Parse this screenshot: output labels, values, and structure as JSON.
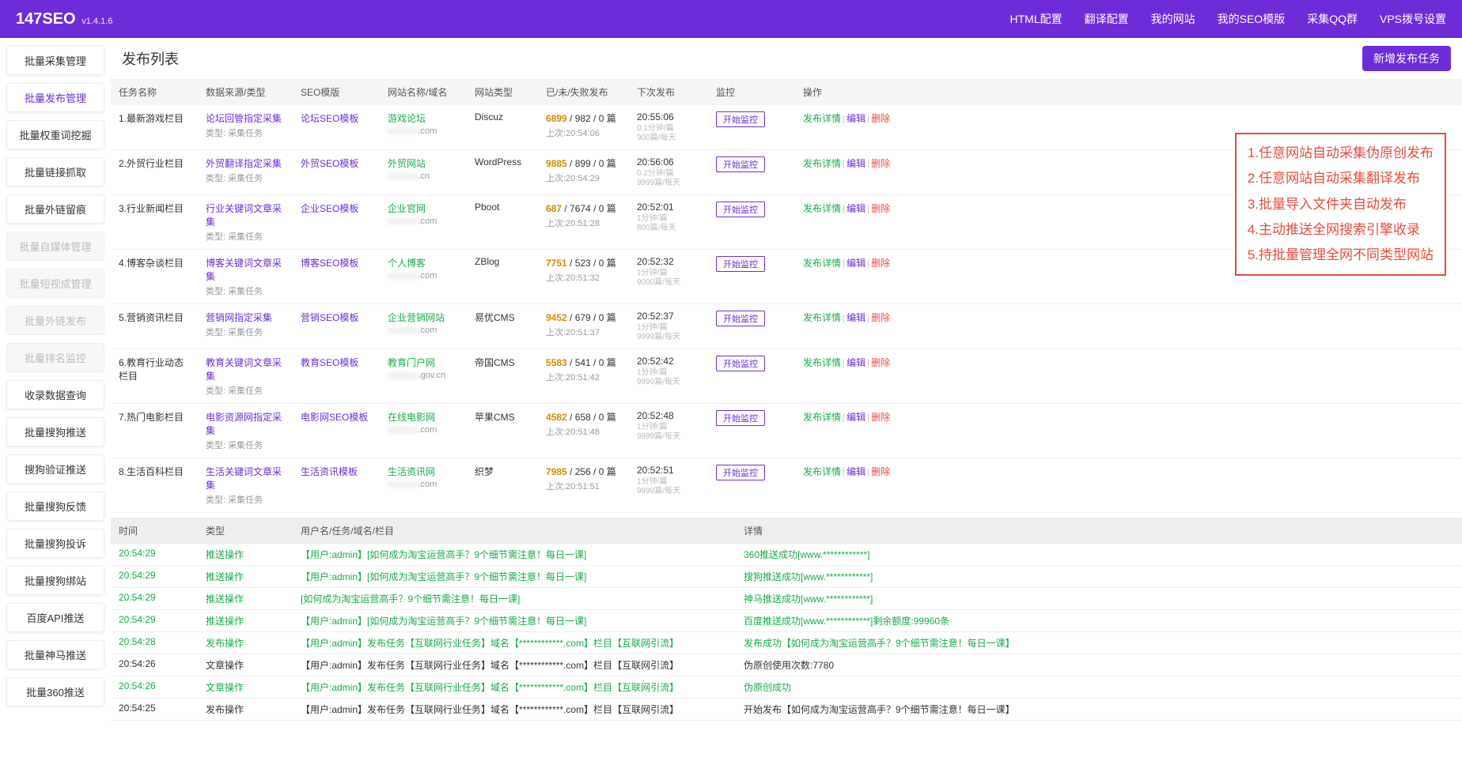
{
  "brand": {
    "name": "147SEO",
    "version": "v1.4.1.6"
  },
  "nav": [
    "HTML配置",
    "翻译配置",
    "我的网站",
    "我的SEO模版",
    "采集QQ群",
    "VPS拨号设置"
  ],
  "sidebar": [
    {
      "label": "批量采集管理",
      "state": "normal"
    },
    {
      "label": "批量发布管理",
      "state": "active"
    },
    {
      "label": "批量权重词挖掘",
      "state": "normal"
    },
    {
      "label": "批量链接抓取",
      "state": "normal"
    },
    {
      "label": "批量外链留痕",
      "state": "normal"
    },
    {
      "label": "批量自媒体管理",
      "state": "disabled"
    },
    {
      "label": "批量短视成管理",
      "state": "disabled"
    },
    {
      "label": "批量外链发布",
      "state": "disabled"
    },
    {
      "label": "批量排名监控",
      "state": "disabled"
    },
    {
      "label": "收录数据查询",
      "state": "normal"
    },
    {
      "label": "批量搜狗推送",
      "state": "normal"
    },
    {
      "label": "搜狗验证推送",
      "state": "normal"
    },
    {
      "label": "批量搜狗反馈",
      "state": "normal"
    },
    {
      "label": "批量搜狗投诉",
      "state": "normal"
    },
    {
      "label": "批量搜狗绑站",
      "state": "normal"
    },
    {
      "label": "百度API推送",
      "state": "normal"
    },
    {
      "label": "批量神马推送",
      "state": "normal"
    },
    {
      "label": "批量360推送",
      "state": "normal"
    }
  ],
  "page": {
    "title": "发布列表",
    "addBtn": "新增发布任务"
  },
  "cols": [
    "任务名称",
    "数据来源/类型",
    "SEO模版",
    "网站名称/域名",
    "网站类型",
    "已/未/失败发布",
    "下次发布",
    "监控",
    "操作"
  ],
  "typeSub": "类型: 采集任务",
  "lastPrefix": "上次:",
  "opLabels": {
    "detail": "发布详情",
    "edit": "编辑",
    "del": "删除"
  },
  "monitorLabel": "开始监控",
  "rows": [
    {
      "name": "1.最新游戏栏目",
      "src": "论坛回管指定采集",
      "tpl": "论坛SEO模板",
      "site": "游戏论坛",
      "domain": ".com",
      "type": "Discuz",
      "pub": "6899",
      "unpub": "982",
      "fail": "0",
      "suffix": "篇",
      "last": "20:54:06",
      "next": "20:55:06",
      "freq1": "0.1分钟/篇",
      "freq2": "900篇/每天"
    },
    {
      "name": "2.外贸行业栏目",
      "src": "外贸翻译指定采集",
      "tpl": "外贸SEO模板",
      "site": "外贸网站",
      "domain": ".cn",
      "type": "WordPress",
      "pub": "9885",
      "unpub": "899",
      "fail": "0",
      "suffix": "篇",
      "last": "20:54:29",
      "next": "20:56:06",
      "freq1": "0.2分钟/篇",
      "freq2": "9999篇/每天"
    },
    {
      "name": "3.行业新闻栏目",
      "src": "行业关键词文章采集",
      "tpl": "企业SEO模板",
      "site": "企业官网",
      "domain": ".com",
      "type": "Pboot",
      "pub": "687",
      "unpub": "7674",
      "fail": "0",
      "suffix": "篇",
      "last": "20:51:28",
      "next": "20:52:01",
      "freq1": "1分钟/篇",
      "freq2": "800篇/每天"
    },
    {
      "name": "4.博客杂谈栏目",
      "src": "博客关键词文章采集",
      "tpl": "博客SEO模板",
      "site": "个人博客",
      "domain": ".com",
      "type": "ZBlog",
      "pub": "7751",
      "unpub": "523",
      "fail": "0",
      "suffix": "篇",
      "last": "20:51:32",
      "next": "20:52:32",
      "freq1": "1分钟/篇",
      "freq2": "9000篇/每天"
    },
    {
      "name": "5.营销资讯栏目",
      "src": "营销网指定采集",
      "tpl": "营销SEO模板",
      "site": "企业营销网站",
      "domain": ".com",
      "type": "易优CMS",
      "pub": "9452",
      "unpub": "679",
      "fail": "0",
      "suffix": "篇",
      "last": "20:51:37",
      "next": "20:52:37",
      "freq1": "1分钟/篇",
      "freq2": "9999篇/每天"
    },
    {
      "name": "6.教育行业动态栏目",
      "src": "教育关键词文章采集",
      "tpl": "教育SEO模板",
      "site": "教育门户网",
      "domain": ".gov.cn",
      "type": "帝国CMS",
      "pub": "5583",
      "unpub": "541",
      "fail": "0",
      "suffix": "篇",
      "last": "20:51:42",
      "next": "20:52:42",
      "freq1": "1分钟/篇",
      "freq2": "9999篇/每天"
    },
    {
      "name": "7.热门电影栏目",
      "src": "电影资源网指定采集",
      "tpl": "电影网SEO模板",
      "site": "在线电影网",
      "domain": ".com",
      "type": "苹果CMS",
      "pub": "4582",
      "unpub": "658",
      "fail": "0",
      "suffix": "篇",
      "last": "20:51:48",
      "next": "20:52:48",
      "freq1": "1分钟/篇",
      "freq2": "9999篇/每天"
    },
    {
      "name": "8.生活百科栏目",
      "src": "生活关键词文章采集",
      "tpl": "生活资讯模板",
      "site": "生活资讯网",
      "domain": ".com",
      "type": "织梦",
      "pub": "7985",
      "unpub": "256",
      "fail": "0",
      "suffix": "篇",
      "last": "20:51:51",
      "next": "20:52:51",
      "freq1": "1分钟/篇",
      "freq2": "9999篇/每天"
    }
  ],
  "callout": [
    "1.任意网站自动采集伪原创发布",
    "2.任意网站自动采集翻译发布",
    "3.批量导入文件夹自动发布",
    "4.主动推送全网搜索引擎收录",
    "5.持批量管理全网不同类型网站"
  ],
  "logCols": [
    "时间",
    "类型",
    "用户名/任务/域名/栏目",
    "详情"
  ],
  "logs": [
    {
      "t": "20:54:29",
      "type": "推送操作",
      "msg": "【用户:admin】[如何成为淘宝运营高手？9个细节需注意！每日一课]",
      "detail": "360推送成功[www.************]",
      "g": true
    },
    {
      "t": "20:54:29",
      "type": "推送操作",
      "msg": "【用户:admin】[如何成为淘宝运营高手？9个细节需注意！每日一课]",
      "detail": "搜狗推送成功[www.************]",
      "g": true
    },
    {
      "t": "20:54:29",
      "type": "推送操作",
      "msg": "[如何成为淘宝运营高手？9个细节需注意！每日一课]",
      "detail": "神马推送成功[www.************]",
      "g": true
    },
    {
      "t": "20:54:29",
      "type": "推送操作",
      "msg": "【用户:admin】[如何成为淘宝运营高手？9个细节需注意！每日一课]",
      "detail": "百度推送成功[www.************]剩余额度:99960条",
      "g": true
    },
    {
      "t": "20:54:28",
      "type": "发布操作",
      "msg": "【用户:admin】发布任务【互联网行业任务】域名【************.com】栏目【互联网引流】",
      "detail": "发布成功【如何成为淘宝运营高手？9个细节需注意！每日一课】",
      "g": true
    },
    {
      "t": "20:54:26",
      "type": "文章操作",
      "msg": "【用户:admin】发布任务【互联网行业任务】域名【************.com】栏目【互联网引流】",
      "detail": "伪原创使用次数:7780",
      "g": false
    },
    {
      "t": "20:54:26",
      "type": "文章操作",
      "msg": "【用户:admin】发布任务【互联网行业任务】域名【************.com】栏目【互联网引流】",
      "detail": "伪原创成功",
      "g": true
    },
    {
      "t": "20:54:25",
      "type": "发布操作",
      "msg": "【用户:admin】发布任务【互联网行业任务】域名【************.com】栏目【互联网引流】",
      "detail": "开始发布【如何成为淘宝运营高手？9个细节需注意！每日一课】",
      "g": false
    }
  ]
}
